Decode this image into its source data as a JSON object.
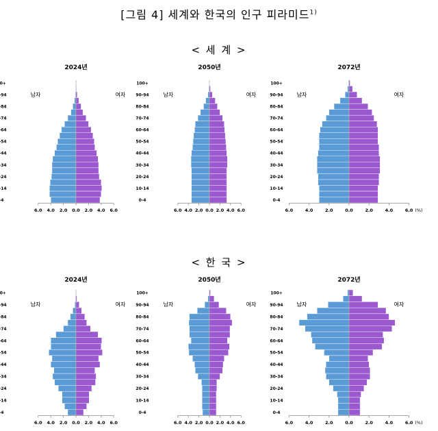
{
  "figure": {
    "title": "[그림 4] 세계와 한국의 인구 피라미드",
    "footnote_mark": "1)"
  },
  "sections": [
    {
      "title": "< 세 계 >"
    },
    {
      "title": "< 한 국 >"
    }
  ],
  "labels": {
    "male": "남자",
    "female": "여자",
    "unit": "(%)"
  },
  "age_ticks": [
    "100+",
    "90-94",
    "80-84",
    "70-74",
    "60-64",
    "50-54",
    "40-44",
    "30-34",
    "20-24",
    "10-14",
    "0-4"
  ],
  "x_ticks": [
    "6.0",
    "4.0",
    "2.0",
    "0.0",
    "2.0",
    "4.0",
    "6.0"
  ],
  "colors": {
    "male": "#5b9bd5",
    "female": "#9b59d0",
    "edge": "#ffffff",
    "axis": "#8a8a8a"
  },
  "chart_data": [
    {
      "type": "bar",
      "region": "세계",
      "year_label": "2024년",
      "categories": [
        "0-4",
        "5-9",
        "10-14",
        "15-19",
        "20-24",
        "25-29",
        "30-34",
        "35-39",
        "40-44",
        "45-49",
        "50-54",
        "55-59",
        "60-64",
        "65-69",
        "70-74",
        "75-79",
        "80-84",
        "85-89",
        "90-94",
        "95-99",
        "100+"
      ],
      "xlim": [
        -6,
        6
      ],
      "series": [
        {
          "name": "남자",
          "values": [
            4.0,
            4.2,
            4.2,
            4.1,
            3.9,
            3.8,
            3.8,
            3.7,
            3.4,
            3.1,
            2.9,
            2.6,
            2.3,
            1.8,
            1.3,
            0.8,
            0.5,
            0.25,
            0.1,
            0.03,
            0.01
          ]
        },
        {
          "name": "여자",
          "values": [
            3.8,
            4.0,
            4.1,
            4.0,
            3.7,
            3.6,
            3.6,
            3.5,
            3.3,
            3.0,
            2.9,
            2.7,
            2.4,
            2.0,
            1.6,
            1.1,
            0.8,
            0.45,
            0.2,
            0.06,
            0.01
          ]
        }
      ]
    },
    {
      "type": "bar",
      "region": "세계",
      "year_label": "2050년",
      "categories": [
        "0-4",
        "5-9",
        "10-14",
        "15-19",
        "20-24",
        "25-29",
        "30-34",
        "35-39",
        "40-44",
        "45-49",
        "50-54",
        "55-59",
        "60-64",
        "65-69",
        "70-74",
        "75-79",
        "80-84",
        "85-89",
        "90-94",
        "95-99",
        "100+"
      ],
      "xlim": [
        -6,
        6
      ],
      "series": [
        {
          "name": "남자",
          "values": [
            3.4,
            3.4,
            3.4,
            3.4,
            3.4,
            3.4,
            3.5,
            3.5,
            3.4,
            3.2,
            3.1,
            3.0,
            2.8,
            2.7,
            2.2,
            1.7,
            1.1,
            0.7,
            0.3,
            0.1,
            0.02
          ]
        },
        {
          "name": "여자",
          "values": [
            3.3,
            3.3,
            3.3,
            3.3,
            3.3,
            3.3,
            3.4,
            3.4,
            3.3,
            3.2,
            3.1,
            3.0,
            2.9,
            2.8,
            2.5,
            2.0,
            1.5,
            1.1,
            0.55,
            0.2,
            0.05
          ]
        }
      ]
    },
    {
      "type": "bar",
      "region": "세계",
      "year_label": "2072년",
      "categories": [
        "0-4",
        "5-9",
        "10-14",
        "15-19",
        "20-24",
        "25-29",
        "30-34",
        "35-39",
        "40-44",
        "45-49",
        "50-54",
        "55-59",
        "60-64",
        "65-69",
        "70-74",
        "75-79",
        "80-84",
        "85-89",
        "90-94",
        "95-99",
        "100+"
      ],
      "xlim": [
        -6,
        6
      ],
      "series": [
        {
          "name": "남자",
          "values": [
            3.0,
            3.0,
            3.0,
            3.1,
            3.1,
            3.2,
            3.2,
            3.2,
            3.1,
            3.0,
            3.0,
            3.0,
            2.9,
            2.7,
            2.3,
            2.0,
            1.5,
            0.9,
            0.4,
            0.15,
            0.05
          ]
        },
        {
          "name": "여자",
          "values": [
            2.9,
            2.9,
            2.9,
            3.0,
            3.0,
            3.1,
            3.1,
            3.1,
            3.0,
            3.0,
            2.9,
            2.9,
            2.9,
            2.8,
            2.5,
            2.3,
            1.9,
            1.3,
            0.8,
            0.35,
            0.1
          ]
        }
      ]
    },
    {
      "type": "bar",
      "region": "한국",
      "year_label": "2024년",
      "categories": [
        "0-4",
        "5-9",
        "10-14",
        "15-19",
        "20-24",
        "25-29",
        "30-34",
        "35-39",
        "40-44",
        "45-49",
        "50-54",
        "55-59",
        "60-64",
        "65-69",
        "70-74",
        "75-79",
        "80-84",
        "85-89",
        "90-94",
        "95-99",
        "100+"
      ],
      "xlim": [
        -6,
        6
      ],
      "series": [
        {
          "name": "남자",
          "values": [
            1.3,
            1.8,
            2.2,
            2.2,
            2.8,
            3.4,
            3.7,
            3.5,
            4.0,
            3.8,
            4.3,
            4.0,
            4.0,
            3.2,
            2.0,
            1.3,
            0.9,
            0.5,
            0.2,
            0.05,
            0.01
          ]
        },
        {
          "name": "여자",
          "values": [
            1.2,
            1.7,
            2.1,
            2.1,
            2.5,
            3.1,
            3.2,
            3.0,
            3.8,
            3.6,
            4.2,
            4.0,
            4.1,
            3.5,
            2.3,
            1.7,
            1.4,
            0.9,
            0.5,
            0.15,
            0.02
          ]
        }
      ]
    },
    {
      "type": "bar",
      "region": "한국",
      "year_label": "2050년",
      "categories": [
        "0-4",
        "5-9",
        "10-14",
        "15-19",
        "20-24",
        "25-29",
        "30-34",
        "35-39",
        "40-44",
        "45-49",
        "50-54",
        "55-59",
        "60-64",
        "65-69",
        "70-74",
        "75-79",
        "80-84",
        "85-89",
        "90-94",
        "95-99",
        "100+"
      ],
      "xlim": [
        -6,
        6
      ],
      "series": [
        {
          "name": "남자",
          "values": [
            1.3,
            1.4,
            1.4,
            1.4,
            1.4,
            1.5,
            2.2,
            2.7,
            2.8,
            3.2,
            3.9,
            4.0,
            3.5,
            3.8,
            3.8,
            3.9,
            3.8,
            2.3,
            0.9,
            0.3,
            0.05
          ]
        },
        {
          "name": "여자",
          "values": [
            1.3,
            1.3,
            1.3,
            1.3,
            1.4,
            1.4,
            2.0,
            2.5,
            2.6,
            2.8,
            3.6,
            3.8,
            3.4,
            3.9,
            3.9,
            4.3,
            4.0,
            3.2,
            1.8,
            0.9,
            0.2
          ]
        }
      ]
    },
    {
      "type": "bar",
      "region": "한국",
      "year_label": "2072년",
      "categories": [
        "0-4",
        "5-9",
        "10-14",
        "15-19",
        "20-24",
        "25-29",
        "30-34",
        "35-39",
        "40-44",
        "45-49",
        "50-54",
        "55-59",
        "60-64",
        "65-69",
        "70-74",
        "75-79",
        "80-84",
        "85-89",
        "90-94",
        "95-99",
        "100+"
      ],
      "xlim": [
        -6,
        6
      ],
      "series": [
        {
          "name": "남자",
          "values": [
            1.1,
            1.1,
            1.1,
            1.2,
            1.6,
            2.0,
            2.3,
            2.4,
            2.3,
            2.0,
            2.5,
            3.4,
            3.7,
            3.8,
            4.4,
            5.0,
            4.2,
            3.2,
            2.1,
            0.6,
            0.15
          ]
        },
        {
          "name": "여자",
          "values": [
            1.1,
            1.1,
            1.1,
            1.2,
            1.5,
            1.8,
            2.1,
            2.1,
            2.0,
            1.9,
            2.4,
            3.3,
            3.5,
            3.4,
            4.3,
            4.6,
            4.0,
            3.7,
            2.9,
            1.3,
            0.4
          ]
        }
      ]
    }
  ]
}
